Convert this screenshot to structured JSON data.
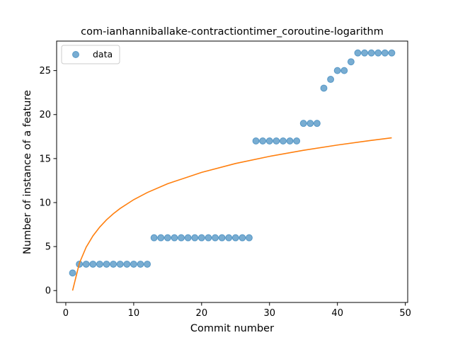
{
  "chart_data": {
    "type": "scatter",
    "title": "com-ianhanniballake-contractiontimer_coroutine-logarithm",
    "xlabel": "Commit number",
    "ylabel": "Number of instance of a feature",
    "xlim": [
      -1.35,
      50.35
    ],
    "ylim": [
      -1.35,
      28.35
    ],
    "xticks": [
      0,
      10,
      20,
      30,
      40,
      50
    ],
    "yticks": [
      0,
      5,
      10,
      15,
      20,
      25
    ],
    "grid": false,
    "legend_position": "top-left",
    "series": [
      {
        "name": "data",
        "kind": "scatter",
        "color": "#1f77b4",
        "x": [
          1,
          2,
          3,
          4,
          5,
          6,
          7,
          8,
          9,
          10,
          11,
          12,
          13,
          14,
          15,
          16,
          17,
          18,
          19,
          20,
          21,
          22,
          23,
          24,
          25,
          26,
          27,
          28,
          29,
          30,
          31,
          32,
          33,
          34,
          35,
          36,
          37,
          38,
          39,
          40,
          41,
          42,
          43,
          44,
          45,
          46,
          47,
          48
        ],
        "y": [
          2,
          3,
          3,
          3,
          3,
          3,
          3,
          3,
          3,
          3,
          3,
          3,
          6,
          6,
          6,
          6,
          6,
          6,
          6,
          6,
          6,
          6,
          6,
          6,
          6,
          6,
          6,
          17,
          17,
          17,
          17,
          17,
          17,
          17,
          19,
          19,
          19,
          23,
          24,
          25,
          25,
          26,
          27,
          27,
          27,
          27,
          27,
          27
        ]
      },
      {
        "kind": "line",
        "color": "#ff7f0e",
        "model": "y = 4.4848 * ln(x)",
        "x": [
          1,
          2,
          3,
          4,
          5,
          6,
          7,
          8,
          10,
          12,
          15,
          20,
          25,
          30,
          35,
          40,
          45,
          48
        ],
        "y": [
          0.0,
          3.11,
          4.93,
          6.22,
          7.22,
          8.04,
          8.73,
          9.33,
          10.33,
          11.14,
          12.14,
          13.43,
          14.44,
          15.25,
          15.94,
          16.54,
          17.07,
          17.36
        ]
      }
    ]
  }
}
